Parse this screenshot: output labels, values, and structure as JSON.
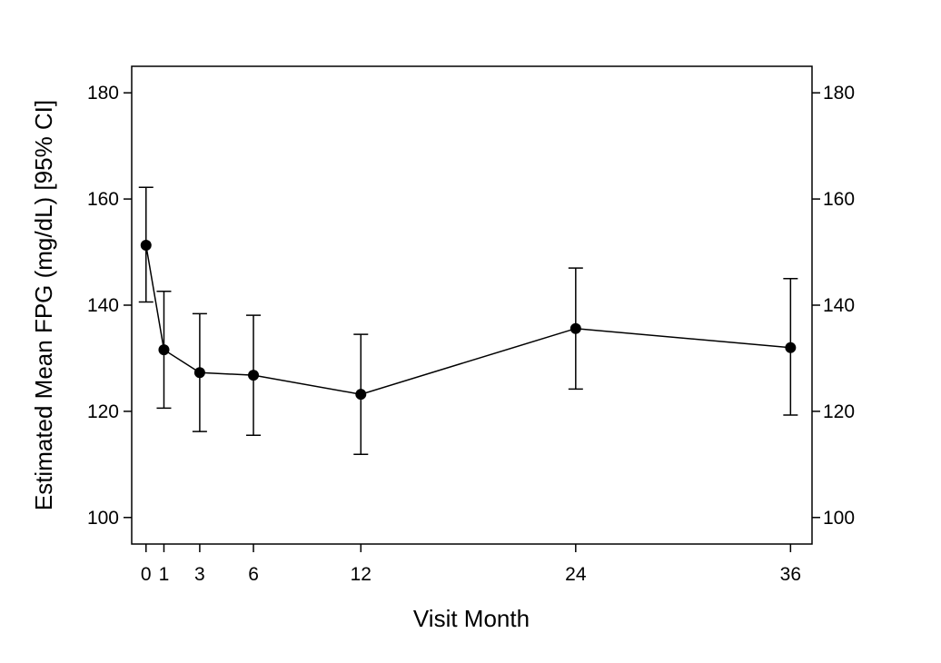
{
  "chart_data": {
    "type": "line",
    "title": "",
    "xlabel": "Visit Month",
    "ylabel": "Estimated Mean FPG (mg/dL) [95% CI]",
    "xlim": [
      -0.8,
      37.2
    ],
    "ylim": [
      95,
      185
    ],
    "x_ticks": [
      0,
      1,
      3,
      6,
      12,
      24,
      36
    ],
    "y_ticks": [
      100,
      120,
      140,
      160,
      180
    ],
    "right_axis_ticks": [
      100,
      120,
      140,
      160,
      180
    ],
    "grid": false,
    "legend": "none",
    "series": [
      {
        "x": [
          0,
          1,
          3,
          6,
          12,
          24,
          36
        ],
        "y": [
          151.3,
          131.6,
          127.3,
          126.8,
          123.2,
          135.6,
          132.0
        ],
        "ci_lower": [
          140.6,
          120.6,
          116.2,
          115.5,
          111.9,
          124.2,
          119.3
        ],
        "ci_upper": [
          162.2,
          142.6,
          138.4,
          138.1,
          134.5,
          147.0,
          145.0
        ]
      }
    ],
    "colors": {
      "line": "#000000",
      "marker": "#000000",
      "axis": "#000000"
    }
  }
}
